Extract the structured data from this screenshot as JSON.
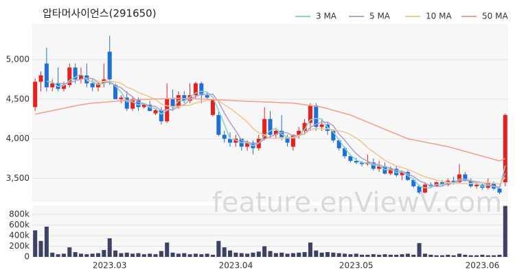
{
  "watermark": "feature.enViewV.com",
  "chart_data": [
    {
      "type": "candlestick",
      "title": "압타머사이언스(291650)",
      "open": [
        4400,
        4720,
        4950,
        4650,
        4700,
        4630,
        4680,
        4900,
        4750,
        4800,
        4700,
        4650,
        4700,
        5100,
        4680,
        4500,
        4520,
        4380,
        4500,
        4400,
        4430,
        4320,
        4360,
        4220,
        4500,
        4400,
        4550,
        4480,
        4550,
        4700,
        4550,
        4300,
        4300,
        4050,
        4000,
        3950,
        4000,
        3900,
        3950,
        3880,
        4000,
        4250,
        4050,
        4100,
        4020,
        3900,
        4050,
        4100,
        4200,
        4420,
        4150,
        4180,
        4100,
        3980,
        3880,
        3780,
        3720,
        3700,
        3680,
        3700,
        3620,
        3650,
        3560,
        3620,
        3540,
        3580,
        3480,
        3400,
        3320,
        3420,
        3400,
        3450,
        3420,
        3470,
        3450,
        3550,
        3470,
        3400,
        3420,
        3380,
        3440,
        3370,
        3450
      ],
      "high": [
        4760,
        4850,
        5150,
        4750,
        4900,
        4720,
        4950,
        4950,
        4900,
        4950,
        4750,
        4720,
        4950,
        5300,
        4700,
        4550,
        4600,
        4520,
        4520,
        4450,
        4480,
        4380,
        4400,
        4700,
        4620,
        4600,
        4600,
        4700,
        4720,
        4720,
        4580,
        4500,
        4340,
        4100,
        4080,
        4050,
        4000,
        3980,
        3980,
        4050,
        4400,
        4350,
        4120,
        4300,
        4050,
        4050,
        4150,
        4250,
        4450,
        4450,
        4250,
        4200,
        4120,
        4000,
        3900,
        3800,
        3760,
        3720,
        3800,
        3750,
        3720,
        3700,
        3650,
        3650,
        3600,
        3600,
        3500,
        3420,
        3450,
        3450,
        3460,
        3480,
        3500,
        3520,
        3680,
        3580,
        3500,
        3450,
        3450,
        3500,
        3460,
        3400,
        4320
      ],
      "low": [
        4350,
        4600,
        4600,
        4600,
        4600,
        4600,
        4650,
        4700,
        4700,
        4650,
        4600,
        4600,
        4650,
        4680,
        4500,
        4450,
        4350,
        4350,
        4350,
        4380,
        4350,
        4300,
        4180,
        4200,
        4350,
        4380,
        4450,
        4450,
        4500,
        4450,
        4500,
        4280,
        4030,
        3950,
        3900,
        3900,
        3850,
        3850,
        3800,
        3850,
        3980,
        4000,
        4000,
        3980,
        3900,
        3850,
        4000,
        4050,
        4100,
        4100,
        4100,
        4050,
        3950,
        3850,
        3750,
        3700,
        3680,
        3650,
        3660,
        3600,
        3580,
        3550,
        3540,
        3520,
        3480,
        3470,
        3380,
        3300,
        3310,
        3380,
        3390,
        3400,
        3400,
        3420,
        3440,
        3460,
        3380,
        3370,
        3360,
        3360,
        3350,
        3300,
        3400
      ],
      "close": [
        4720,
        4800,
        4650,
        4700,
        4630,
        4680,
        4900,
        4750,
        4800,
        4700,
        4650,
        4700,
        4750,
        4750,
        4500,
        4520,
        4380,
        4500,
        4400,
        4430,
        4350,
        4360,
        4220,
        4500,
        4400,
        4550,
        4480,
        4550,
        4700,
        4550,
        4520,
        4500,
        4050,
        4000,
        3950,
        4000,
        3900,
        3950,
        3880,
        4000,
        4250,
        4050,
        4100,
        4020,
        3950,
        4050,
        4100,
        4200,
        4420,
        4150,
        4180,
        4100,
        3980,
        3880,
        3780,
        3720,
        3700,
        3680,
        3700,
        3620,
        3650,
        3560,
        3620,
        3540,
        3580,
        3480,
        3400,
        3320,
        3420,
        3400,
        3450,
        3420,
        3470,
        3450,
        3550,
        3470,
        3400,
        3420,
        3380,
        3440,
        3370,
        3320,
        4300
      ],
      "up_color": "#e8201d",
      "down_color": "#1f6fd8",
      "series": [
        {
          "name": "3 MA",
          "color": "#82d4c9",
          "values": [
            null,
            null,
            4723,
            4717,
            4660,
            4670,
            4737,
            4777,
            4817,
            4750,
            4717,
            4683,
            4700,
            4733,
            4667,
            4590,
            4467,
            4467,
            4427,
            4443,
            4393,
            4380,
            4310,
            4360,
            4373,
            4483,
            4477,
            4527,
            4577,
            4600,
            4590,
            4523,
            4357,
            4183,
            4000,
            3983,
            3950,
            3950,
            3910,
            3943,
            4043,
            4100,
            4133,
            4057,
            4023,
            4007,
            4033,
            4117,
            4240,
            4257,
            4250,
            4143,
            4087,
            3987,
            3880,
            3793,
            3733,
            3700,
            3693,
            3667,
            3657,
            3610,
            3610,
            3573,
            3580,
            3533,
            3487,
            3400,
            3380,
            3380,
            3423,
            3423,
            3447,
            3447,
            3490,
            3490,
            3473,
            3430,
            3400,
            3413,
            3397,
            3377,
            3663
          ]
        },
        {
          "name": "5 MA",
          "color": "#b49fcf",
          "values": [
            null,
            null,
            null,
            null,
            4700,
            4692,
            4712,
            4732,
            4752,
            4766,
            4760,
            4720,
            4720,
            4710,
            4670,
            4644,
            4580,
            4530,
            4460,
            4446,
            4412,
            4408,
            4352,
            4372,
            4366,
            4406,
            4430,
            4496,
            4536,
            4566,
            4560,
            4564,
            4464,
            4324,
            4204,
            4100,
            3980,
            3960,
            3936,
            3946,
            3996,
            4026,
            4056,
            4084,
            4074,
            4034,
            4044,
            4064,
            4144,
            4184,
            4210,
            4210,
            4166,
            4058,
            3984,
            3892,
            3812,
            3752,
            3716,
            3684,
            3670,
            3642,
            3630,
            3598,
            3590,
            3556,
            3524,
            3468,
            3440,
            3404,
            3398,
            3402,
            3432,
            3438,
            3468,
            3472,
            3468,
            3458,
            3444,
            3422,
            3402,
            3386,
            3566
          ]
        },
        {
          "name": "10 MA",
          "color": "#f2c790",
          "values": [
            null,
            null,
            null,
            null,
            null,
            null,
            null,
            null,
            null,
            4733,
            4726,
            4716,
            4726,
            4731,
            4718,
            4702,
            4650,
            4625,
            4585,
            4558,
            4528,
            4494,
            4441,
            4416,
            4406,
            4409,
            4419,
            4424,
            4454,
            4466,
            4483,
            4497,
            4480,
            4430,
            4385,
            4330,
            4272,
            4212,
            4130,
            4075,
            4048,
            4003,
            4008,
            4010,
            4010,
            4015,
            4035,
            4060,
            4114,
            4129,
            4122,
            4127,
            4115,
            4101,
            4084,
            4051,
            4011,
            3959,
            3887,
            3834,
            3781,
            3727,
            3691,
            3657,
            3637,
            3613,
            3583,
            3549,
            3519,
            3497,
            3477,
            3463,
            3450,
            3439,
            3436,
            3435,
            3435,
            3445,
            3441,
            3445,
            3437,
            3427,
            3512
          ]
        },
        {
          "name": "50 MA",
          "color": "#f4a08b",
          "values": [
            4310,
            4325,
            4340,
            4355,
            4370,
            4385,
            4400,
            4415,
            4430,
            4440,
            4450,
            4456,
            4462,
            4468,
            4474,
            4480,
            4484,
            4488,
            4492,
            4496,
            4500,
            4502,
            4504,
            4506,
            4508,
            4510,
            4508,
            4506,
            4504,
            4502,
            4500,
            4496,
            4492,
            4488,
            4484,
            4480,
            4477,
            4474,
            4471,
            4468,
            4465,
            4462,
            4459,
            4456,
            4453,
            4450,
            4440,
            4430,
            4420,
            4410,
            4400,
            4380,
            4360,
            4340,
            4320,
            4300,
            4270,
            4240,
            4210,
            4180,
            4150,
            4120,
            4090,
            4060,
            4030,
            4000,
            3986,
            3971,
            3957,
            3943,
            3929,
            3914,
            3900,
            3880,
            3860,
            3840,
            3820,
            3800,
            3780,
            3760,
            3740,
            3720,
            3750
          ]
        }
      ],
      "ylim": [
        3200,
        5450
      ],
      "yticks": [
        {
          "value": 3500,
          "label": "3,500"
        },
        {
          "value": 4000,
          "label": "4,000"
        },
        {
          "value": 4500,
          "label": "4,500"
        },
        {
          "value": 5000,
          "label": "5,000"
        }
      ],
      "grid": true
    },
    {
      "type": "bar",
      "categories": [
        null,
        null,
        null,
        null,
        null,
        null,
        null,
        null,
        null,
        null,
        null,
        null,
        null,
        "2023.03",
        null,
        null,
        null,
        null,
        null,
        null,
        null,
        null,
        null,
        null,
        null,
        null,
        null,
        null,
        null,
        null,
        null,
        null,
        null,
        null,
        null,
        "2023.04",
        null,
        null,
        null,
        null,
        null,
        null,
        null,
        null,
        null,
        null,
        null,
        null,
        null,
        null,
        null,
        null,
        null,
        null,
        null,
        null,
        "2023.05",
        null,
        null,
        null,
        null,
        null,
        null,
        null,
        null,
        null,
        null,
        null,
        null,
        null,
        null,
        null,
        null,
        null,
        null,
        null,
        null,
        null,
        "2023.06",
        null,
        null,
        null,
        null
      ],
      "values": [
        500000,
        300000,
        570000,
        80000,
        50000,
        60000,
        180000,
        90000,
        60000,
        50000,
        60000,
        70000,
        130000,
        350000,
        120000,
        70000,
        80000,
        60000,
        70000,
        50000,
        60000,
        50000,
        110000,
        270000,
        80000,
        60000,
        70000,
        50000,
        60000,
        50000,
        60000,
        40000,
        300000,
        180000,
        120000,
        80000,
        70000,
        60000,
        80000,
        100000,
        200000,
        110000,
        70000,
        80000,
        60000,
        70000,
        80000,
        90000,
        270000,
        120000,
        80000,
        90000,
        80000,
        70000,
        60000,
        50000,
        60000,
        40000,
        40000,
        50000,
        40000,
        50000,
        40000,
        40000,
        50000,
        60000,
        40000,
        260000,
        60000,
        40000,
        30000,
        30000,
        40000,
        30000,
        60000,
        40000,
        30000,
        30000,
        40000,
        30000,
        30000,
        40000,
        960000
      ],
      "color": "#3e4066",
      "ylim": [
        0,
        968000
      ],
      "yticks": [
        0,
        {
          "value": 200000,
          "label": "200k"
        },
        {
          "value": 400000,
          "label": "400k"
        },
        {
          "value": 600000,
          "label": "600k"
        },
        {
          "value": 800000,
          "label": "800k"
        }
      ],
      "grid": true
    }
  ]
}
